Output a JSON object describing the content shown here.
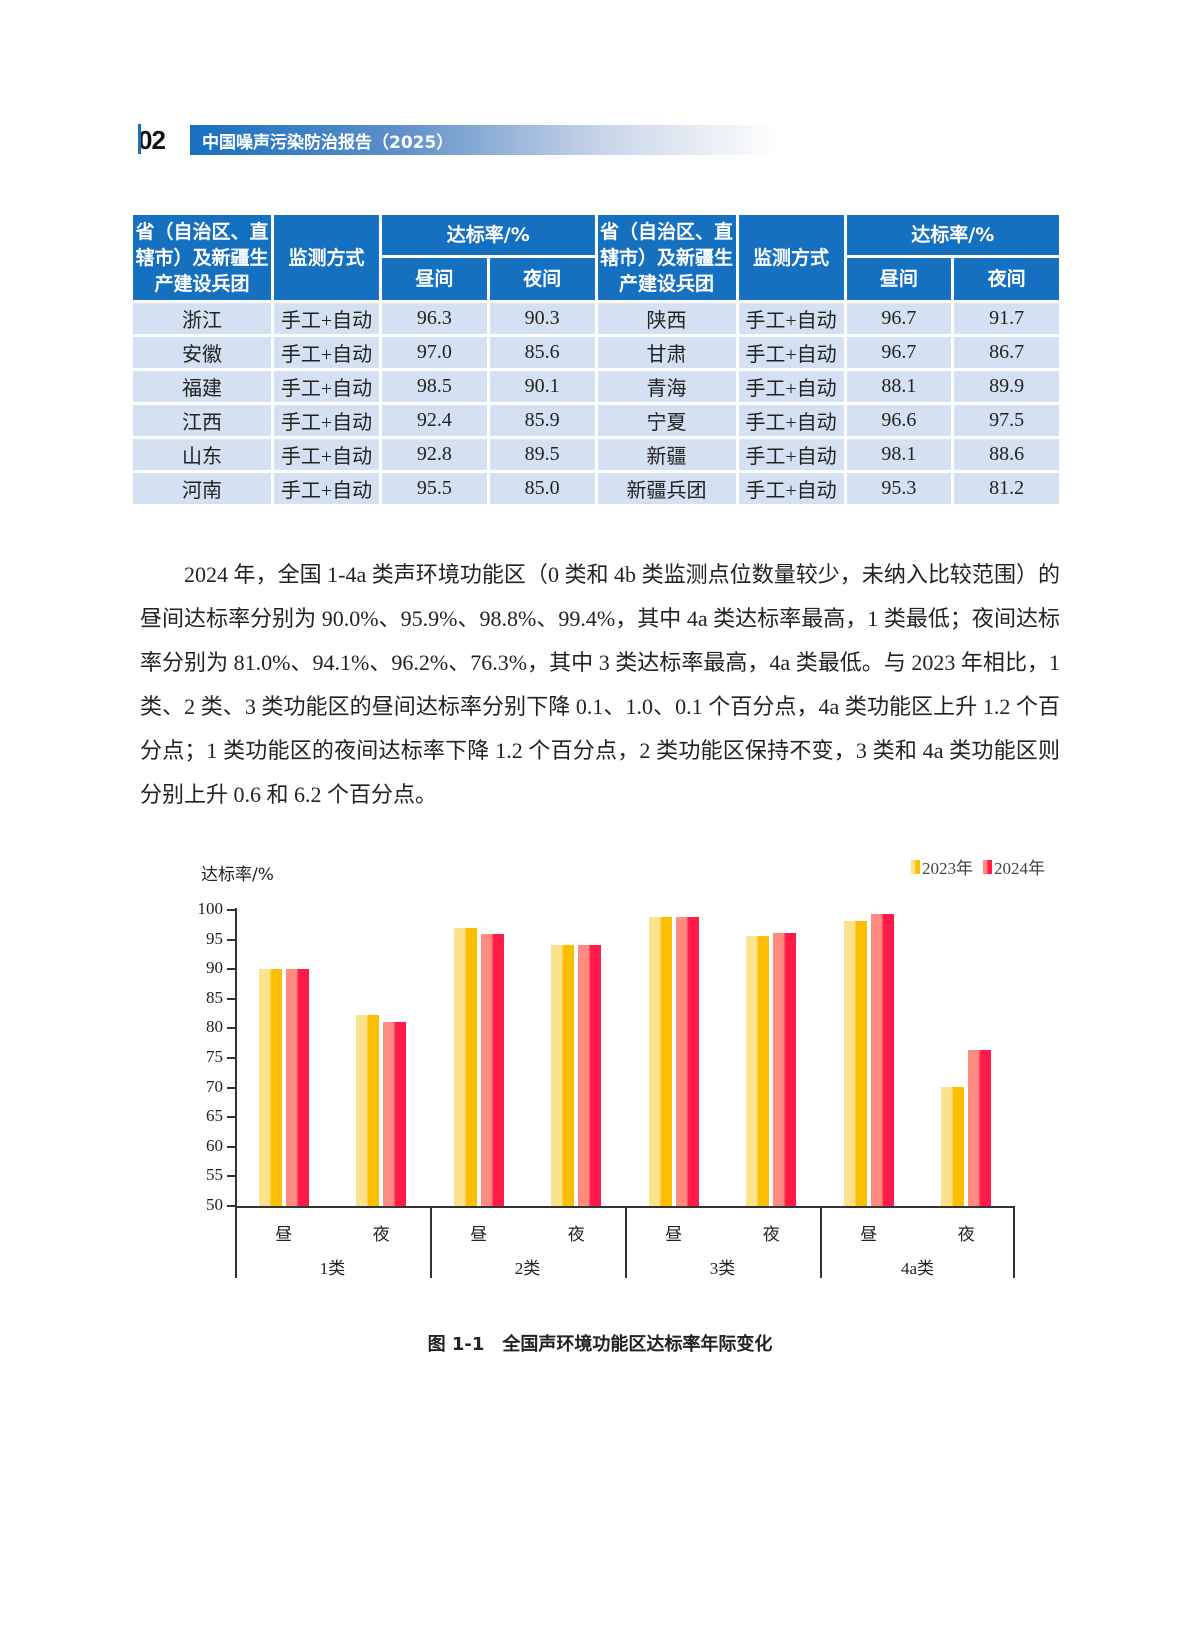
{
  "header": {
    "page_number": "02",
    "report_title": "中国噪声污染防治报告（2025）",
    "accent_color": "#1670c0"
  },
  "table": {
    "headers": {
      "province": "省（自治区、直辖市）及新疆生产建设兵团",
      "method": "监测方式",
      "rate": "达标率/%",
      "day": "昼间",
      "night": "夜间"
    },
    "left": [
      {
        "name": "浙江",
        "method": "手工+自动",
        "day": "96.3",
        "night": "90.3"
      },
      {
        "name": "安徽",
        "method": "手工+自动",
        "day": "97.0",
        "night": "85.6"
      },
      {
        "name": "福建",
        "method": "手工+自动",
        "day": "98.5",
        "night": "90.1"
      },
      {
        "name": "江西",
        "method": "手工+自动",
        "day": "92.4",
        "night": "85.9"
      },
      {
        "name": "山东",
        "method": "手工+自动",
        "day": "92.8",
        "night": "89.5"
      },
      {
        "name": "河南",
        "method": "手工+自动",
        "day": "95.5",
        "night": "85.0"
      }
    ],
    "right": [
      {
        "name": "陕西",
        "method": "手工+自动",
        "day": "96.7",
        "night": "91.7"
      },
      {
        "name": "甘肃",
        "method": "手工+自动",
        "day": "96.7",
        "night": "86.7"
      },
      {
        "name": "青海",
        "method": "手工+自动",
        "day": "88.1",
        "night": "89.9"
      },
      {
        "name": "宁夏",
        "method": "手工+自动",
        "day": "96.6",
        "night": "97.5"
      },
      {
        "name": "新疆",
        "method": "手工+自动",
        "day": "98.1",
        "night": "88.6"
      },
      {
        "name": "新疆兵团",
        "method": "手工+自动",
        "day": "95.3",
        "night": "81.2"
      }
    ]
  },
  "paragraph": "2024 年，全国 1-4a 类声环境功能区（0 类和 4b 类监测点位数量较少，未纳入比较范围）的昼间达标率分别为 90.0%、95.9%、98.8%、99.4%，其中 4a 类达标率最高，1 类最低；夜间达标率分别为 81.0%、94.1%、96.2%、76.3%，其中 3 类达标率最高，4a 类最低。与 2023 年相比，1 类、2 类、3 类功能区的昼间达标率分别下降 0.1、1.0、0.1 个百分点，4a 类功能区上升 1.2 个百分点；1 类功能区的夜间达标率下降 1.2 个百分点，2 类功能区保持不变，3 类和 4a 类功能区则分别上升 0.6 和 6.2 个百分点。",
  "figure": {
    "number": "图 1-1",
    "title": "全国声环境功能区达标率年际变化"
  },
  "chart_data": {
    "type": "bar",
    "title": "全国声环境功能区达标率年际变化",
    "ylabel": "达标率/%",
    "xlabel": "",
    "ylim": [
      50,
      100
    ],
    "yticks": [
      "100",
      "95",
      "90",
      "85",
      "80",
      "75",
      "70",
      "65",
      "60",
      "55",
      "50"
    ],
    "groups": [
      "1类",
      "2类",
      "3类",
      "4a类"
    ],
    "categories": [
      "昼",
      "夜",
      "昼",
      "夜",
      "昼",
      "夜",
      "昼",
      "夜"
    ],
    "series": [
      {
        "name": "2023年",
        "color": "#fbbe00",
        "values": [
          90.1,
          82.2,
          96.9,
          94.1,
          98.9,
          95.6,
          98.2,
          70.1
        ]
      },
      {
        "name": "2024年",
        "color": "#ff1a47",
        "values": [
          90.0,
          81.0,
          95.9,
          94.1,
          98.8,
          96.2,
          99.4,
          76.3
        ]
      }
    ],
    "legend_position": "top-right",
    "grid": false
  }
}
